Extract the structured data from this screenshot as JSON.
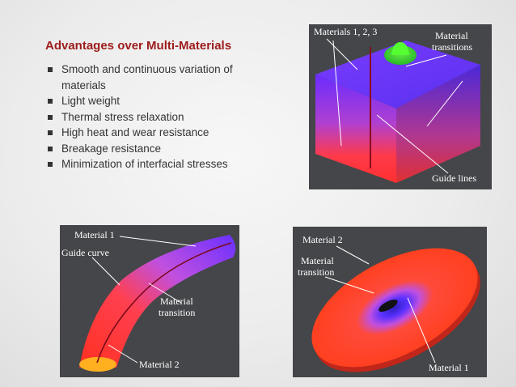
{
  "slide": {
    "title": "Advantages over Multi-Materials",
    "bullets": [
      "Smooth and continuous variation of materials",
      "Light weight",
      "Thermal stress relaxation",
      "High heat and wear resistance",
      "Breakage resistance",
      "Minimization of interfacial stresses"
    ]
  },
  "figures": {
    "block": {
      "label_materials": "Materials 1, 2, 3",
      "label_transitions_1": "Material",
      "label_transitions_2": "transitions",
      "label_guides": "Guide lines"
    },
    "pipe": {
      "label_material1": "Material 1",
      "label_guide": "Guide curve",
      "label_transition_1": "Material",
      "label_transition_2": "transition",
      "label_material2": "Material 2"
    },
    "disk": {
      "label_material2": "Material 2",
      "label_transition_1": "Material",
      "label_transition_2": "transition",
      "label_material1": "Material 1"
    }
  },
  "colors": {
    "title": "#9e1b1b",
    "panel_bg": "#444649",
    "material_blue": "#6a2cff",
    "material_red": "#ff3b2e",
    "material_green": "#33ff22"
  }
}
